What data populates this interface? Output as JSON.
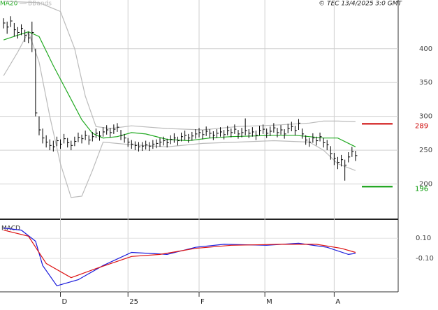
{
  "chart_data": [
    {
      "type": "ohlc",
      "source": "© TEC 13/4/2025 3:0 GMT",
      "xlim": [
        -1,
        111
      ],
      "ylim": [
        150,
        472
      ],
      "yticks": [
        200,
        250,
        300,
        350,
        400
      ],
      "grid": true,
      "bar_color": "#000000",
      "x": [
        0,
        1,
        2,
        3,
        4,
        5,
        6,
        7,
        8,
        9,
        10,
        11,
        12,
        13,
        14,
        15,
        16,
        17,
        18,
        19,
        20,
        21,
        22,
        23,
        24,
        25,
        26,
        27,
        28,
        29,
        30,
        31,
        32,
        33,
        34,
        35,
        36,
        37,
        38,
        39,
        40,
        41,
        42,
        43,
        44,
        45,
        46,
        47,
        48,
        49,
        50,
        51,
        52,
        53,
        54,
        55,
        56,
        57,
        58,
        59,
        60,
        61,
        62,
        63,
        64,
        65,
        66,
        67,
        68,
        69,
        70,
        71,
        72,
        73,
        74,
        75,
        76,
        77,
        78,
        79,
        80,
        81,
        82,
        83,
        84,
        85,
        86,
        87,
        88,
        89,
        90,
        91,
        92,
        93,
        94,
        95,
        96,
        97,
        98,
        99
      ],
      "high": [
        445,
        440,
        448,
        438,
        432,
        436,
        428,
        425,
        440,
        400,
        300,
        282,
        272,
        266,
        264,
        270,
        266,
        274,
        268,
        264,
        270,
        276,
        273,
        279,
        272,
        277,
        282,
        278,
        284,
        287,
        283,
        288,
        290,
        280,
        274,
        268,
        265,
        263,
        262,
        262,
        264,
        262,
        265,
        266,
        268,
        270,
        267,
        272,
        275,
        270,
        276,
        279,
        274,
        277,
        281,
        283,
        280,
        285,
        281,
        278,
        281,
        284,
        280,
        286,
        282,
        288,
        280,
        283,
        297,
        281,
        284,
        279,
        286,
        288,
        282,
        285,
        290,
        283,
        287,
        281,
        289,
        292,
        286,
        296,
        282,
        272,
        268,
        275,
        270,
        276,
        268,
        265,
        256,
        246,
        240,
        243,
        236,
        247,
        255,
        249
      ],
      "low": [
        430,
        422,
        432,
        418,
        415,
        420,
        410,
        408,
        395,
        300,
        272,
        260,
        254,
        250,
        248,
        256,
        252,
        260,
        254,
        250,
        256,
        262,
        260,
        265,
        258,
        263,
        268,
        264,
        270,
        273,
        269,
        274,
        277,
        265,
        261,
        255,
        252,
        250,
        248,
        249,
        251,
        249,
        252,
        253,
        255,
        257,
        254,
        259,
        261,
        257,
        263,
        265,
        261,
        264,
        267,
        269,
        266,
        271,
        268,
        265,
        268,
        270,
        266,
        272,
        269,
        274,
        267,
        269,
        272,
        268,
        270,
        265,
        272,
        274,
        268,
        271,
        276,
        269,
        273,
        267,
        275,
        278,
        272,
        280,
        267,
        258,
        255,
        261,
        257,
        263,
        254,
        250,
        236,
        228,
        222,
        226,
        205,
        232,
        240,
        234
      ],
      "close": [
        438,
        432,
        441,
        428,
        424,
        430,
        420,
        416,
        424,
        305,
        280,
        268,
        262,
        257,
        255,
        264,
        259,
        267,
        261,
        257,
        263,
        269,
        267,
        272,
        265,
        270,
        275,
        271,
        277,
        280,
        276,
        281,
        284,
        272,
        268,
        262,
        259,
        257,
        255,
        256,
        258,
        256,
        259,
        260,
        262,
        264,
        261,
        266,
        268,
        264,
        270,
        272,
        268,
        271,
        274,
        276,
        273,
        278,
        275,
        272,
        275,
        277,
        273,
        279,
        276,
        281,
        274,
        276,
        279,
        275,
        277,
        272,
        279,
        281,
        275,
        278,
        283,
        276,
        280,
        274,
        282,
        285,
        279,
        290,
        274,
        265,
        262,
        268,
        264,
        270,
        261,
        258,
        245,
        238,
        232,
        236,
        228,
        240,
        248,
        242
      ],
      "series": [
        {
          "name": "MA20",
          "color": "#22aa22",
          "x": [
            0,
            4,
            7,
            10,
            14,
            18,
            22,
            25,
            28,
            32,
            36,
            40,
            46,
            52,
            58,
            64,
            70,
            76,
            82,
            86,
            90,
            94,
            99
          ],
          "values": [
            413,
            420,
            425,
            418,
            375,
            335,
            295,
            275,
            268,
            270,
            276,
            274,
            266,
            264,
            268,
            270,
            271,
            272,
            272,
            270,
            268,
            268,
            255
          ]
        }
      ],
      "bands": {
        "name": "BBands",
        "color": "#bbbbbb",
        "upper": {
          "x": [
            0,
            10,
            16,
            20,
            23,
            26,
            30,
            36,
            46,
            56,
            66,
            76,
            86,
            90,
            94,
            99
          ],
          "values": [
            470,
            468,
            455,
            400,
            330,
            285,
            282,
            286,
            282,
            280,
            285,
            287,
            290,
            293,
            293,
            292
          ]
        },
        "lower": {
          "x": [
            0,
            4,
            7,
            10,
            13,
            16,
            19,
            22,
            25,
            28,
            36,
            46,
            56,
            66,
            76,
            86,
            90,
            94,
            99
          ],
          "values": [
            360,
            395,
            425,
            380,
            300,
            230,
            180,
            182,
            220,
            262,
            258,
            255,
            260,
            262,
            264,
            262,
            250,
            230,
            220
          ]
        }
      },
      "markers": [
        {
          "value": 289,
          "color": "#cc0000"
        },
        {
          "value": 196,
          "color": "#009900"
        }
      ]
    },
    {
      "type": "line",
      "title": "MACD",
      "xlim": [
        -1,
        111
      ],
      "ylim": [
        -0.43,
        0.26
      ],
      "yticks": [
        {
          "value": 0.1,
          "label": "0.10"
        },
        {
          "value": -0.1,
          "label": "-0.10"
        }
      ],
      "xticks": [
        {
          "value": 16,
          "label": "D"
        },
        {
          "value": 35,
          "label": "25"
        },
        {
          "value": 55,
          "label": "F"
        },
        {
          "value": 73.5,
          "label": "M"
        },
        {
          "value": 93,
          "label": "A"
        }
      ],
      "series": [
        {
          "color": "#1a1adb",
          "x": [
            0,
            5,
            9,
            11,
            15,
            21,
            28,
            36,
            46,
            54,
            62,
            74,
            83,
            91,
            97,
            99
          ],
          "values": [
            0.2,
            0.18,
            0.07,
            -0.17,
            -0.37,
            -0.31,
            -0.17,
            -0.04,
            -0.06,
            0.01,
            0.04,
            0.03,
            0.05,
            0.01,
            -0.06,
            -0.05
          ]
        },
        {
          "color": "#dd1111",
          "x": [
            0,
            7,
            12,
            19,
            26,
            36,
            44,
            54,
            64,
            78,
            88,
            95,
            99
          ],
          "values": [
            0.18,
            0.12,
            -0.15,
            -0.29,
            -0.2,
            -0.08,
            -0.06,
            0.0,
            0.03,
            0.04,
            0.04,
            0.0,
            -0.04
          ]
        }
      ]
    }
  ]
}
